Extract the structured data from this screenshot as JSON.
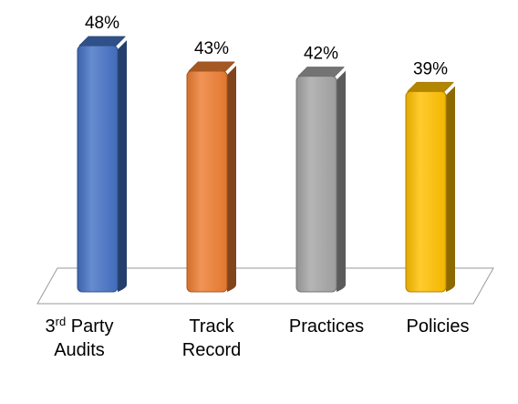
{
  "chart_data": {
    "type": "bar",
    "style": "3d-cylinder",
    "categories": [
      {
        "lines": [
          {
            "text": "3",
            "sup": "rd",
            "rest": " Party"
          },
          {
            "text": "Audits"
          }
        ],
        "full": "3rd Party Audits"
      },
      {
        "lines": [
          {
            "text": "Track"
          },
          {
            "text": "Record"
          }
        ],
        "full": "Track Record"
      },
      {
        "lines": [
          {
            "text": "Practices"
          }
        ],
        "full": "Practices"
      },
      {
        "lines": [
          {
            "text": "Policies"
          }
        ],
        "full": "Policies"
      }
    ],
    "values": [
      48,
      43,
      42,
      39
    ],
    "data_labels": [
      "48%",
      "43%",
      "42%",
      "39%"
    ],
    "colors": [
      "#4472C4",
      "#ED7D31",
      "#A5A5A5",
      "#FFC000"
    ],
    "ylim": [
      0,
      55
    ],
    "unit": "%",
    "grid": false,
    "legend": false
  }
}
